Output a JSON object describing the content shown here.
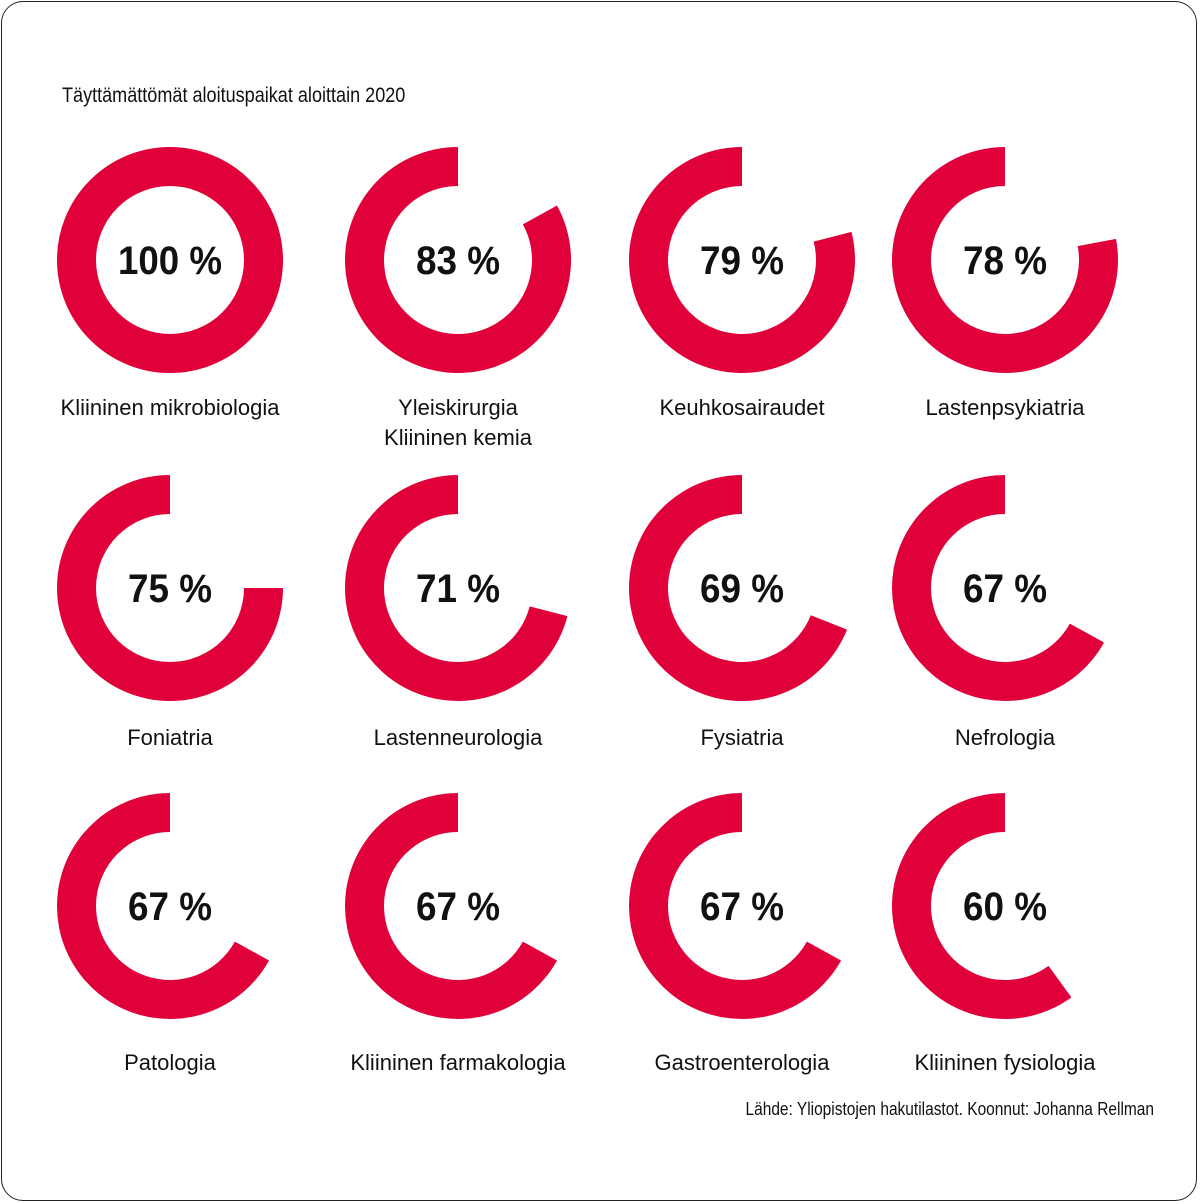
{
  "chart_data": {
    "type": "donut",
    "title": "Täyttämättömät aloituspaikat aloittain 2020",
    "source": "Lähde: Yliopistojen hakutilastot. Koonnut: Johanna Rellman",
    "color": "#E0003A",
    "items": [
      {
        "label": [
          "Kliininen mikrobiologia"
        ],
        "value": 100,
        "text": "100 %"
      },
      {
        "label": [
          "Yleiskirurgia",
          "Kliininen kemia"
        ],
        "value": 83,
        "text": "83 %"
      },
      {
        "label": [
          "Keuhkosairaudet"
        ],
        "value": 79,
        "text": "79 %"
      },
      {
        "label": [
          "Lastenpsykiatria"
        ],
        "value": 78,
        "text": "78 %"
      },
      {
        "label": [
          "Foniatria"
        ],
        "value": 75,
        "text": "75 %"
      },
      {
        "label": [
          "Lastenneurologia"
        ],
        "value": 71,
        "text": "71 %"
      },
      {
        "label": [
          "Fysiatria"
        ],
        "value": 69,
        "text": "69 %"
      },
      {
        "label": [
          "Nefrologia"
        ],
        "value": 67,
        "text": "67 %"
      },
      {
        "label": [
          "Patologia"
        ],
        "value": 67,
        "text": "67 %"
      },
      {
        "label": [
          "Kliininen farmakologia"
        ],
        "value": 67,
        "text": "67 %"
      },
      {
        "label": [
          "Gastroenterologia"
        ],
        "value": 67,
        "text": "67 %"
      },
      {
        "label": [
          "Kliininen fysiologia"
        ],
        "value": 60,
        "text": "60 %"
      }
    ]
  }
}
